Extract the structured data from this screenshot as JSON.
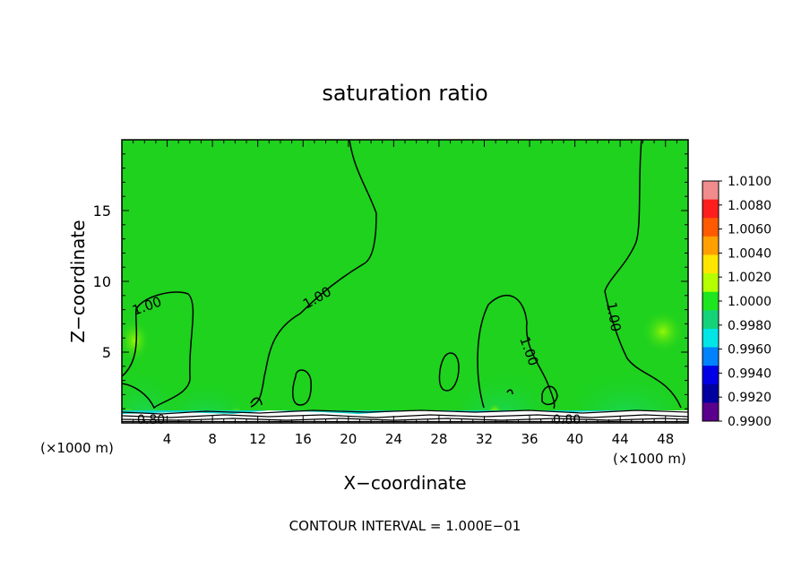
{
  "chart_data": {
    "type": "heatmap",
    "title": "saturation ratio",
    "xlabel": "X−coordinate",
    "ylabel": "Z−coordinate",
    "x_unit": "(×1000 m)",
    "x_unit_right": "(×1000 m)",
    "footer": "CONTOUR INTERVAL = 1.000E−01",
    "xlim": [
      0,
      50
    ],
    "ylim": [
      0,
      20
    ],
    "x_ticks": [
      4,
      8,
      12,
      16,
      20,
      24,
      28,
      32,
      36,
      40,
      44,
      48
    ],
    "y_ticks": [
      5,
      10,
      15
    ],
    "contour_labels": [
      "1.00",
      "1.00",
      "1.00",
      "1.00",
      "0.80",
      "0.80"
    ],
    "colorbar": {
      "labels": [
        "1.0100",
        "1.0080",
        "1.0060",
        "1.0040",
        "1.0020",
        "1.0000",
        "0.9980",
        "0.9960",
        "0.9940",
        "0.9920",
        "0.9900"
      ],
      "colors": [
        "#f08c8c",
        "#ff1e1e",
        "#ff5a00",
        "#ffa000",
        "#ffe600",
        "#b4ff00",
        "#1ee61e",
        "#14d278",
        "#00e6e6",
        "#0082ff",
        "#0000e6",
        "#0000a0",
        "#5a008c"
      ]
    },
    "background_color": "#1ed21e"
  }
}
